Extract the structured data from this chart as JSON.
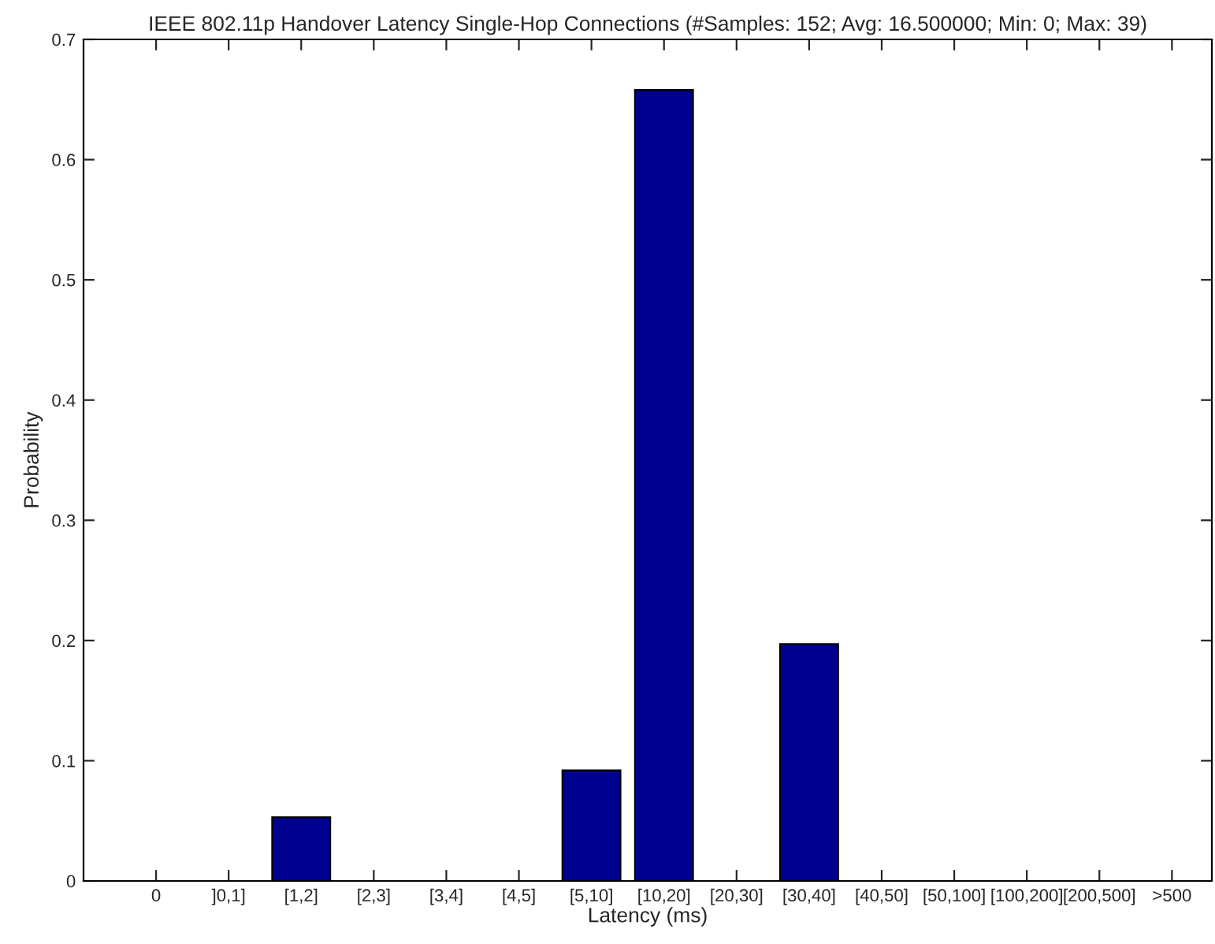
{
  "chart_data": {
    "type": "bar",
    "title": "IEEE 802.11p Handover Latency Single-Hop Connections (#Samples: 152; Avg: 16.500000; Min: 0; Max: 39)",
    "xlabel": "Latency (ms)",
    "ylabel": "Probability",
    "categories": [
      "0",
      "]0,1]",
      "[1,2]",
      "[2,3]",
      "[3,4]",
      "[4,5]",
      "[5,10]",
      "[10,20]",
      "[20,30]",
      "[30,40]",
      "[40,50]",
      "[50,100]",
      "[100,200]",
      "[200,500]",
      ">500"
    ],
    "values": [
      0,
      0,
      0.053,
      0,
      0,
      0,
      0.092,
      0.658,
      0,
      0.197,
      0,
      0,
      0,
      0,
      0
    ],
    "color": "#000090",
    "ylim": [
      0,
      0.7
    ],
    "yticks": [
      0,
      0.1,
      0.2,
      0.3,
      0.4,
      0.5,
      0.6,
      0.7
    ],
    "grid": false,
    "legend": false
  }
}
